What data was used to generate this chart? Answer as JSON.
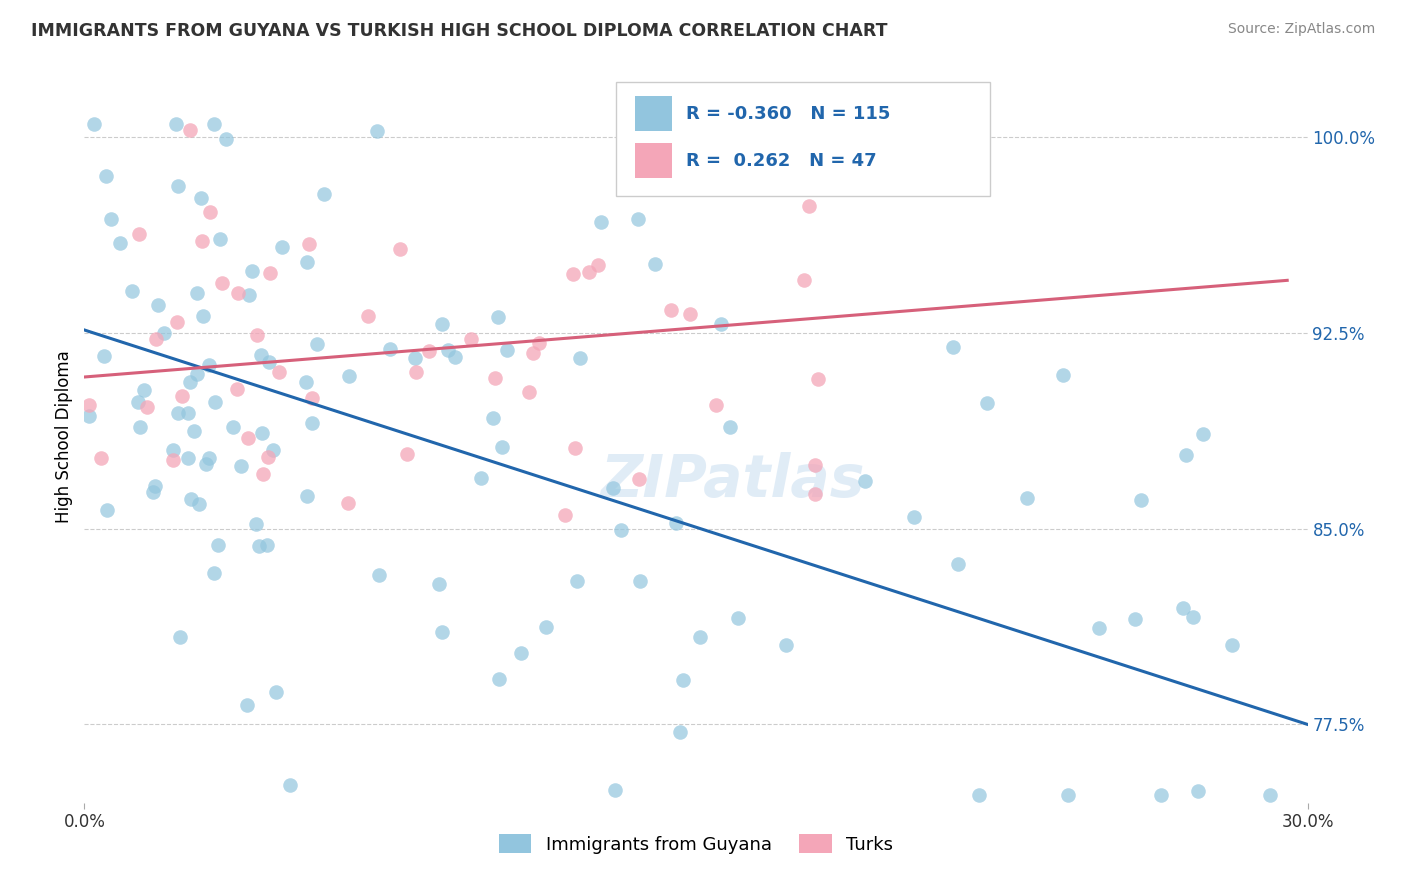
{
  "title": "IMMIGRANTS FROM GUYANA VS TURKISH HIGH SCHOOL DIPLOMA CORRELATION CHART",
  "source": "Source: ZipAtlas.com",
  "ylabel": "High School Diploma",
  "xlim": [
    0.0,
    0.3
  ],
  "ylim": [
    0.745,
    1.025
  ],
  "yticks": [
    0.775,
    0.85,
    0.925,
    1.0
  ],
  "ytick_labels": [
    "77.5%",
    "85.0%",
    "92.5%",
    "100.0%"
  ],
  "xticks": [
    0.0,
    0.3
  ],
  "xtick_labels": [
    "0.0%",
    "30.0%"
  ],
  "blue_R": -0.36,
  "blue_N": 115,
  "pink_R": 0.262,
  "pink_N": 47,
  "blue_color": "#92c5de",
  "pink_color": "#f4a6b8",
  "blue_line_color": "#2166ac",
  "pink_line_color": "#d6607a",
  "blue_tick_color": "#2166ac",
  "watermark": "ZIPatlas",
  "legend_label_blue": "Immigrants from Guyana",
  "legend_label_pink": "Turks",
  "blue_line_x": [
    0.0,
    0.3
  ],
  "blue_line_y": [
    0.926,
    0.775
  ],
  "pink_line_x": [
    0.0,
    0.295
  ],
  "pink_line_y": [
    0.908,
    0.945
  ]
}
